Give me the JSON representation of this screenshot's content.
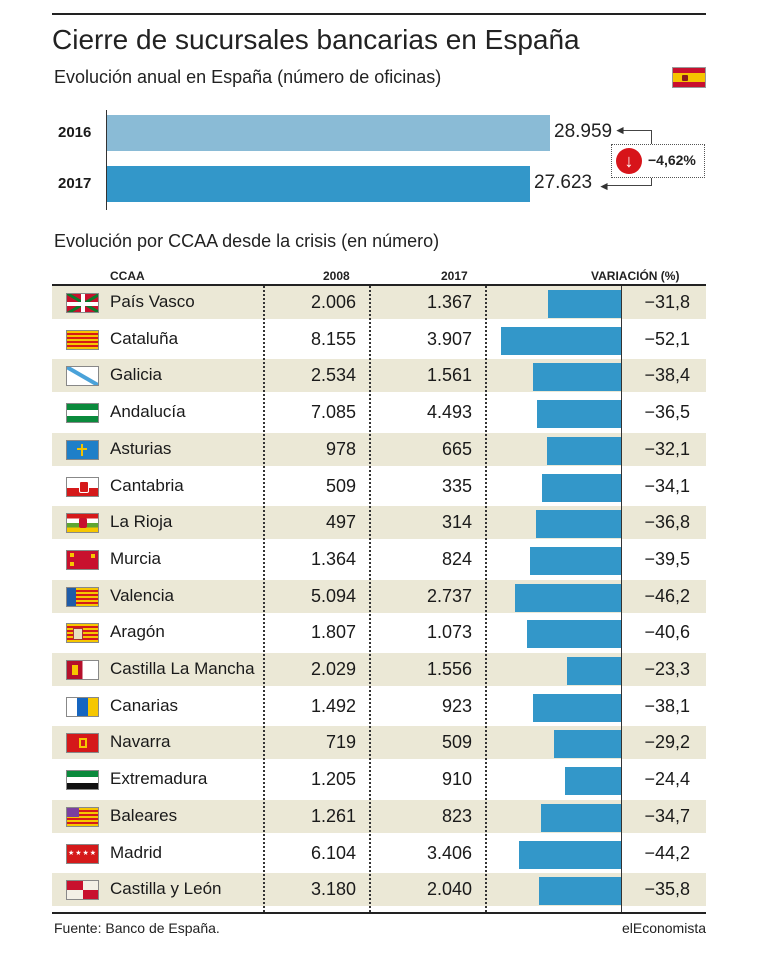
{
  "header": {
    "title": "Cierre de sucursales bancarias en España",
    "subtitle": "Evolución anual en España (número de oficinas)",
    "flag_icon": "spain-flag-icon"
  },
  "national": {
    "variation": "−4,62%",
    "variation_icon": "down-arrow-icon",
    "colors": {
      "2016": "#8abbd6",
      "2017": "#3397c9"
    },
    "series": [
      {
        "year": "2016",
        "label": "28.959",
        "value": 28959
      },
      {
        "year": "2017",
        "label": "27.623",
        "value": 27623
      }
    ]
  },
  "section_title": "Evolución por CCAA desde la crisis (en número)",
  "table": {
    "columns": {
      "ccaa": "CCAA",
      "y2008": "2008",
      "y2017": "2017",
      "variation": "VARIACIÓN (%)"
    },
    "bar_color": "#3397c9",
    "shade_color": "#ebe8d6"
  },
  "chart_data": [
    {
      "type": "bar",
      "title": "Evolución anual en España (número de oficinas)",
      "categories": [
        "2016",
        "2017"
      ],
      "values": [
        28959,
        27623
      ],
      "annotation": "−4,62%"
    },
    {
      "type": "table",
      "title": "Evolución por CCAA desde la crisis (en número)",
      "rows": [
        {
          "region": "País Vasco",
          "flag": "pais-vasco-flag-icon",
          "v2008": "2.006",
          "v2017": "1.367",
          "pct_label": "−31,8",
          "pct": -31.8
        },
        {
          "region": "Cataluña",
          "flag": "cataluna-flag-icon",
          "v2008": "8.155",
          "v2017": "3.907",
          "pct_label": "−52,1",
          "pct": -52.1
        },
        {
          "region": "Galicia",
          "flag": "galicia-flag-icon",
          "v2008": "2.534",
          "v2017": "1.561",
          "pct_label": "−38,4",
          "pct": -38.4
        },
        {
          "region": "Andalucía",
          "flag": "andalucia-flag-icon",
          "v2008": "7.085",
          "v2017": "4.493",
          "pct_label": "−36,5",
          "pct": -36.5
        },
        {
          "region": "Asturias",
          "flag": "asturias-flag-icon",
          "v2008": "978",
          "v2017": "665",
          "pct_label": "−32,1",
          "pct": -32.1
        },
        {
          "region": "Cantabria",
          "flag": "cantabria-flag-icon",
          "v2008": "509",
          "v2017": "335",
          "pct_label": "−34,1",
          "pct": -34.1
        },
        {
          "region": "La Rioja",
          "flag": "la-rioja-flag-icon",
          "v2008": "497",
          "v2017": "314",
          "pct_label": "−36,8",
          "pct": -36.8
        },
        {
          "region": "Murcia",
          "flag": "murcia-flag-icon",
          "v2008": "1.364",
          "v2017": "824",
          "pct_label": "−39,5",
          "pct": -39.5
        },
        {
          "region": "Valencia",
          "flag": "valencia-flag-icon",
          "v2008": "5.094",
          "v2017": "2.737",
          "pct_label": "−46,2",
          "pct": -46.2
        },
        {
          "region": "Aragón",
          "flag": "aragon-flag-icon",
          "v2008": "1.807",
          "v2017": "1.073",
          "pct_label": "−40,6",
          "pct": -40.6
        },
        {
          "region": "Castilla La Mancha",
          "flag": "castilla-la-mancha-flag-icon",
          "v2008": "2.029",
          "v2017": "1.556",
          "pct_label": "−23,3",
          "pct": -23.3
        },
        {
          "region": "Canarias",
          "flag": "canarias-flag-icon",
          "v2008": "1.492",
          "v2017": "923",
          "pct_label": "−38,1",
          "pct": -38.1
        },
        {
          "region": "Navarra",
          "flag": "navarra-flag-icon",
          "v2008": "719",
          "v2017": "509",
          "pct_label": "−29,2",
          "pct": -29.2
        },
        {
          "region": "Extremadura",
          "flag": "extremadura-flag-icon",
          "v2008": "1.205",
          "v2017": "910",
          "pct_label": "−24,4",
          "pct": -24.4
        },
        {
          "region": "Baleares",
          "flag": "baleares-flag-icon",
          "v2008": "1.261",
          "v2017": "823",
          "pct_label": "−34,7",
          "pct": -34.7
        },
        {
          "region": "Madrid",
          "flag": "madrid-flag-icon",
          "v2008": "6.104",
          "v2017": "3.406",
          "pct_label": "−44,2",
          "pct": -44.2
        },
        {
          "region": "Castilla y León",
          "flag": "castilla-y-leon-flag-icon",
          "v2008": "3.180",
          "v2017": "2.040",
          "pct_label": "−35,8",
          "pct": -35.8
        }
      ]
    }
  ],
  "footer": {
    "source": "Fuente: Banco de España.",
    "brand": "elEconomista"
  }
}
